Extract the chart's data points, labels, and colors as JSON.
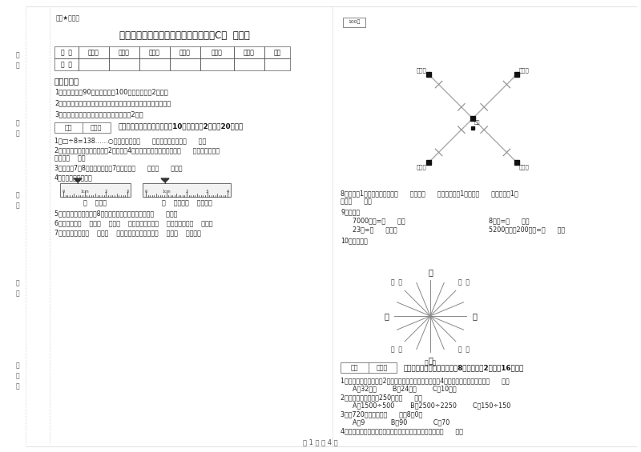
{
  "title": "沪教版三年级数学下学期能力检测试卷C卷  附解析",
  "top_label": "题密★启用前",
  "table_headers": [
    "题  号",
    "填空题",
    "选择题",
    "判断题",
    "计算题",
    "综合题",
    "应用题",
    "总分"
  ],
  "table_row": [
    "得  分",
    "",
    "",
    "",
    "",
    "",
    "",
    ""
  ],
  "exam_notes_title": "考试须知：",
  "exam_notes": [
    "1．考试时间：90分钟，满分为100分（含卷面分2分）。",
    "2．请首先按要求在试卷的指定位置填写您的姓名、班级、学号。",
    "3．不要在试卷上乱写乱画，卷面不整洁扣2分。"
  ],
  "section1_title": "一、用心思考，正确填空（共10小题，每题2分，共20分）。",
  "q1": "1．□÷8=138……○，余数最大填（      ），这时被除数是（      ）。",
  "q2_a": "2．劳动课上做纸花，红红做了2朵纸花，4朵蓝花，红花占纸花总数的（      ），蓝花占纸花",
  "q2_b": "总数的（    ）。",
  "q3": "3．时针在7和8之间，分针指向7，这时是（      ）时（      ）分。",
  "q4": "4．量出钉子的长度。",
  "ruler1_label": "（    ）毫米",
  "ruler2_label": "（    ）厘米（    ）毫米。",
  "q5": "5．小明从一楼到三楼用8秒，照这样他从一楼到五楼用（      ）秒。",
  "q6": "6．你出生于（    ）年（    ）月（    ）日，那一年是（    ）年，全年有（    ）天。",
  "q7": "7．小红家在学校（    ）方（    ）米处，小明家在学校（    ）方（    ）米处。",
  "q8_a": "8．分针走1小格，秒针正好走（      ），是（      ）秒。分针走1大格是（      ），时针走1大",
  "q8_b": "格是（      ）。",
  "q9_title": "9．换算。",
  "q9_r1a": "7000千克=（      ）吨",
  "q9_r1b": "8千克=（      ）克",
  "q9_r2a": "23吨=（      ）千克",
  "q9_r2b": "5200千克－200千克=（      ）吨",
  "q10": "10．填一填。",
  "section2_title": "二、反复比较，慎重选择（共8小题，每题2分，共16分）。",
  "sq1": "1．一个正方形的边长是2厘米，现在将边长扩大到原来的4倍，现在正方形的周长是（      ）。",
  "sq1_opts": "A．32厘米        B．24厘米        C．10厘米",
  "sq2": "2．下面的约果圈好是250的是（      ）。",
  "sq2_opts": "A．1500÷500        B．2500÷2250        C．150÷150",
  "sq3": "3．从720里连续减去（      ）个8得0。",
  "sq3_opts": "A．9             B．90             C．70",
  "sq4": "4．时针从上一个数字到相邻的下一个数字，经过的时间是（      ）。",
  "north_label": "北",
  "scale_label": "100米",
  "label_hongjiia": "小红家",
  "label_mingjiia": "小明家",
  "label_huajiia": "小花家",
  "label_qiangjiia": "小强家",
  "label_school": "学校",
  "bg_color": "#ffffff"
}
